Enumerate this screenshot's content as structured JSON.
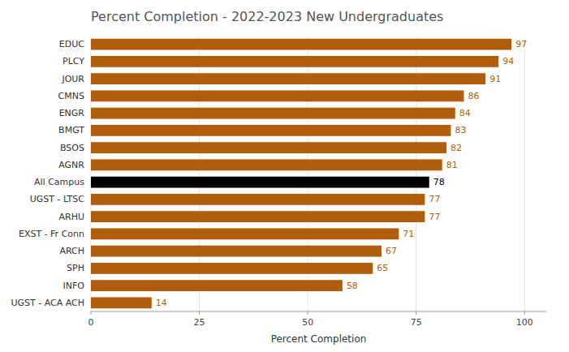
{
  "chart_data": {
    "type": "bar",
    "orientation": "horizontal",
    "title": "Percent Completion - 2022-2023 New Undergraduates",
    "xlabel": "Percent Completion",
    "categories": [
      "UGST - ACA ACH",
      "INFO",
      "SPH",
      "ARCH",
      "EXST - Fr Conn",
      "ARHU",
      "UGST - LTSC",
      "All Campus",
      "AGNR",
      "BSOS",
      "BMGT",
      "ENGR",
      "CMNS",
      "JOUR",
      "PLCY",
      "EDUC"
    ],
    "values": [
      14,
      58,
      65,
      67,
      71,
      77,
      77,
      78,
      81,
      82,
      83,
      84,
      86,
      91,
      94,
      97
    ],
    "colors": [
      "#b05e0d",
      "#b05e0d",
      "#b05e0d",
      "#b05e0d",
      "#b05e0d",
      "#b05e0d",
      "#b05e0d",
      "#000000",
      "#b05e0d",
      "#b05e0d",
      "#b05e0d",
      "#b05e0d",
      "#b05e0d",
      "#b05e0d",
      "#b05e0d",
      "#b05e0d"
    ],
    "xlim": [
      0,
      105
    ],
    "xticks": [
      0,
      25,
      50,
      75,
      100
    ],
    "grid": true,
    "data_labels": true
  }
}
